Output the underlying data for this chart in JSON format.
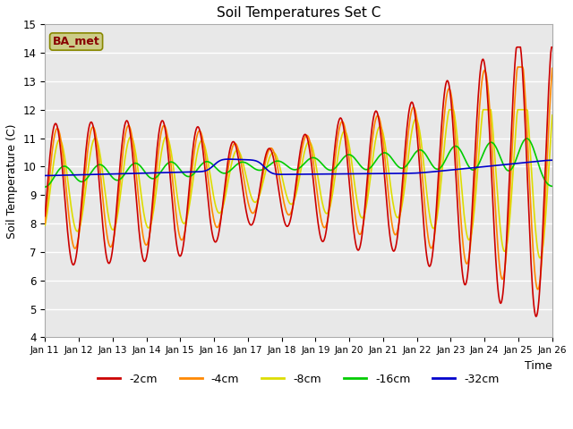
{
  "title": "Soil Temperatures Set C",
  "xlabel": "Time",
  "ylabel": "Soil Temperature (C)",
  "ylim": [
    4.0,
    15.0
  ],
  "yticks": [
    4.0,
    5.0,
    6.0,
    7.0,
    8.0,
    9.0,
    10.0,
    11.0,
    12.0,
    13.0,
    14.0,
    15.0
  ],
  "xtick_labels": [
    "Jan 11",
    "Jan 12",
    "Jan 13",
    "Jan 14",
    "Jan 15",
    "Jan 16",
    "Jan 17",
    "Jan 18",
    "Jan 19",
    "Jan 20",
    "Jan 21",
    "Jan 22",
    "Jan 23",
    "Jan 24",
    "Jan 25",
    "Jan 26"
  ],
  "colors": {
    "2cm": "#cc0000",
    "4cm": "#ff8800",
    "8cm": "#dddd00",
    "16cm": "#00cc00",
    "32cm": "#0000cc"
  },
  "annotation_text": "BA_met",
  "annotation_fgcolor": "#880000",
  "annotation_bgcolor": "#cccc88",
  "annotation_edgecolor": "#888800",
  "fig_facecolor": "#ffffff",
  "axes_facecolor": "#e8e8e8",
  "grid_color": "#ffffff",
  "line_width": 1.2
}
